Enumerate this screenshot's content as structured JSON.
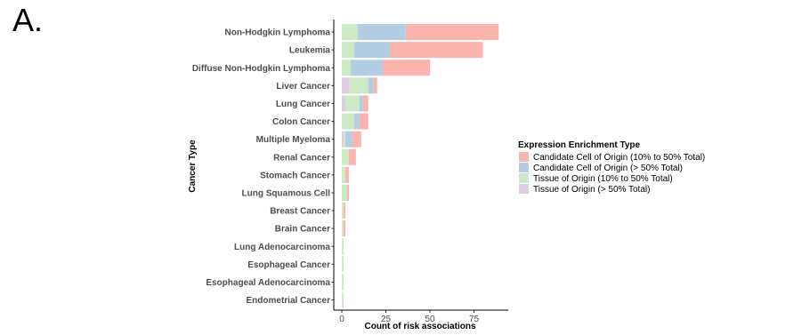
{
  "panel_label": "A.",
  "chart_data": {
    "type": "bar",
    "orientation": "horizontal",
    "stacked": true,
    "xlabel": "Count of risk associations",
    "ylabel": "Cancer Type",
    "xlim": [
      0,
      93
    ],
    "xticks": [
      0,
      25,
      50,
      75
    ],
    "grid": false,
    "legend_title": "Expression Enrichment Type",
    "legend_position": "right",
    "categories": [
      "Non-Hodgkin Lymphoma",
      "Leukemia",
      "Diffuse Non-Hodgkin Lymphoma",
      "Liver Cancer",
      "Lung Cancer",
      "Colon Cancer",
      "Multiple Myeloma",
      "Renal Cancer",
      "Stomach Cancer",
      "Lung Squamous Cell",
      "Breast Cancer",
      "Brain Cancer",
      "Lung Adenocarcinoma",
      "Esophageal Cancer",
      "Esophageal Adenocarcinoma",
      "Endometrial Cancer"
    ],
    "series": [
      {
        "name": "Tissue of Origin (> 50% Total)",
        "color": "#decbe4",
        "values": [
          0,
          0,
          0,
          4,
          2,
          0,
          1,
          0,
          0,
          0,
          0,
          0,
          0,
          0,
          0,
          0
        ]
      },
      {
        "name": "Tissue of Origin (10% to 50% Total)",
        "color": "#ccebc5",
        "values": [
          9,
          7,
          5,
          11,
          8,
          7,
          1,
          4,
          2,
          3,
          1,
          1,
          1,
          1,
          1,
          1
        ]
      },
      {
        "name": "Candidate Cell of Origin (> 50% Total)",
        "color": "#b3cde3",
        "values": [
          27,
          20,
          18,
          3,
          2,
          3,
          4,
          0,
          0,
          0,
          0,
          0,
          0,
          0,
          0,
          0
        ]
      },
      {
        "name": "Candidate Cell of Origin (10% to 50% Total)",
        "color": "#fbb4ae",
        "values": [
          53,
          53,
          27,
          2,
          3,
          5,
          5,
          4,
          2,
          1,
          1,
          1,
          0,
          0,
          0,
          0
        ]
      }
    ],
    "legend_order": [
      "Candidate Cell of Origin (10% to 50% Total)",
      "Candidate Cell of Origin (> 50% Total)",
      "Tissue of Origin (10% to 50% Total)",
      "Tissue of Origin (> 50% Total)"
    ]
  }
}
